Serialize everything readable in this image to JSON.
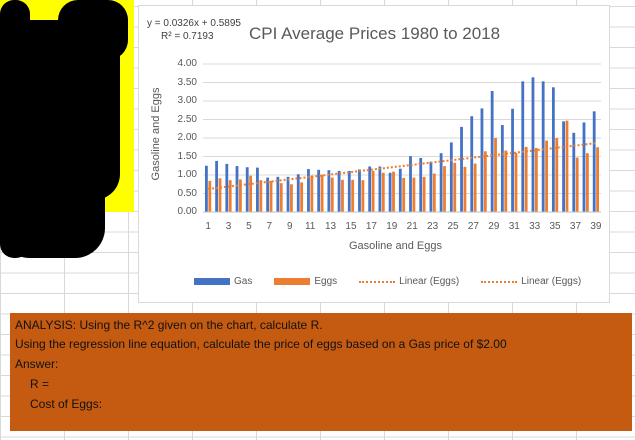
{
  "colors": {
    "gas": "#4472c4",
    "eggs": "#ed7d31",
    "analysis_bg": "#c55a11",
    "highlight": "#ffff00"
  },
  "chart_data": {
    "type": "bar",
    "title": "CPI Average Prices 1980 to 2018",
    "xlabel": "Gasoline and Eggs",
    "ylabel": "Gasoline and Eggs",
    "ylim": [
      0,
      4
    ],
    "yticks": [
      "0.00",
      "0.50",
      "1.00",
      "1.50",
      "2.00",
      "2.50",
      "3.00",
      "3.50",
      "4.00"
    ],
    "x_tick_labels": [
      "1",
      "3",
      "5",
      "7",
      "9",
      "11",
      "13",
      "15",
      "17",
      "19",
      "21",
      "23",
      "25",
      "27",
      "29",
      "31",
      "33",
      "35",
      "37",
      "39"
    ],
    "categories": [
      1,
      2,
      3,
      4,
      5,
      6,
      7,
      8,
      9,
      10,
      11,
      12,
      13,
      14,
      15,
      16,
      17,
      18,
      19,
      20,
      21,
      22,
      23,
      24,
      25,
      26,
      27,
      28,
      29,
      30,
      31,
      32,
      33,
      34,
      35,
      36,
      37,
      38,
      39
    ],
    "series": [
      {
        "name": "Gas",
        "values": [
          1.25,
          1.38,
          1.3,
          1.24,
          1.21,
          1.2,
          0.93,
          0.95,
          0.95,
          1.02,
          1.16,
          1.14,
          1.13,
          1.11,
          1.11,
          1.15,
          1.23,
          1.23,
          1.06,
          1.17,
          1.51,
          1.46,
          1.36,
          1.59,
          1.88,
          2.3,
          2.59,
          2.8,
          3.27,
          2.35,
          2.79,
          3.53,
          3.64,
          3.53,
          3.37,
          2.45,
          2.14,
          2.42,
          2.72
        ]
      },
      {
        "name": "Eggs",
        "values": [
          0.84,
          0.91,
          0.86,
          0.88,
          0.98,
          0.86,
          0.84,
          0.78,
          0.75,
          0.8,
          0.98,
          1.01,
          0.93,
          0.87,
          0.87,
          0.86,
          1.11,
          1.06,
          1.09,
          0.92,
          0.93,
          0.95,
          1.04,
          1.24,
          1.33,
          1.22,
          1.31,
          1.64,
          2.0,
          1.66,
          1.6,
          1.76,
          1.73,
          1.93,
          2.0,
          2.47,
          1.47,
          1.59,
          1.75
        ]
      }
    ],
    "trendline": {
      "series": "Eggs",
      "label": "Linear (Eggs)",
      "equation": "y = 0.0326x + 0.5895",
      "r2": "R² = 0.7193",
      "slope": 0.0326,
      "intercept": 0.5895
    },
    "legend": {
      "position": "bottom",
      "entries": [
        "Gas",
        "Eggs",
        "Linear (Eggs)",
        "Linear (Eggs)"
      ]
    },
    "grid": true
  },
  "analysis": {
    "line1": "ANALYSIS:  Using the R^2 given on the chart, calculate R.",
    "line2": "Using the regression line equation, calculate the price of eggs based on a Gas price of $2.00",
    "answer_label": "Answer:",
    "r_label": "R =",
    "cost_label": "Cost of Eggs:"
  }
}
